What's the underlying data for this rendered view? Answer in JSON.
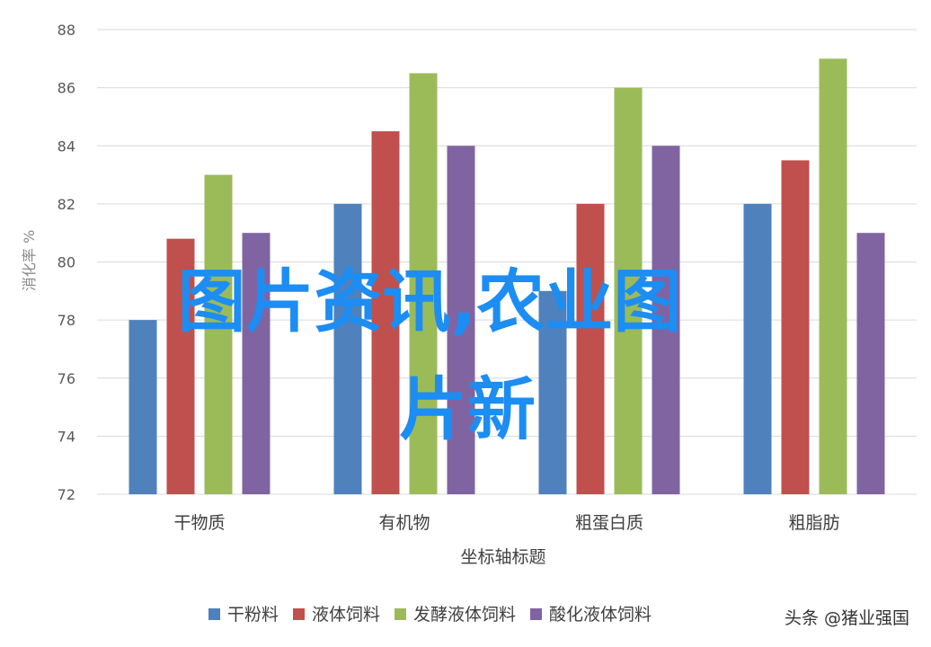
{
  "chart_data": {
    "type": "bar",
    "title": "",
    "xlabel": "坐标轴标题",
    "ylabel": "消化率 %",
    "ylim": [
      72,
      88
    ],
    "yticks": [
      72,
      74,
      76,
      78,
      80,
      82,
      84,
      86,
      88
    ],
    "grid": true,
    "legend_position": "bottom",
    "categories": [
      "干物质",
      "有机物",
      "粗蛋白质",
      "粗脂肪"
    ],
    "series": [
      {
        "name": "干粉料",
        "color": "#4f81bd",
        "values": [
          78,
          82,
          79,
          82
        ]
      },
      {
        "name": "液体饲料",
        "color": "#c0504d",
        "values": [
          80.8,
          84.5,
          82,
          83.5
        ]
      },
      {
        "name": "发酵液体饲料",
        "color": "#9bbb59",
        "values": [
          83,
          86.5,
          86,
          87
        ]
      },
      {
        "name": "酸化液体饲料",
        "color": "#8064a2",
        "values": [
          81,
          84,
          84,
          81
        ]
      }
    ]
  },
  "overlay": {
    "line1": "图片资讯,农业图",
    "line2": "片新",
    "color": "#1c8df2"
  },
  "watermark": {
    "text": "头条 @猪业强国"
  }
}
